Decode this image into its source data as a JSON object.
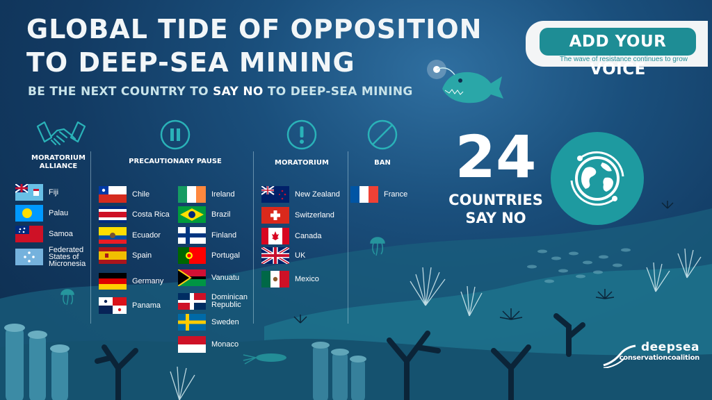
{
  "title": {
    "line1": "GLOBAL TIDE OF OPPOSITION",
    "line2": "TO DEEP-SEA MINING"
  },
  "subtitle": {
    "before": "BE THE NEXT COUNTRY TO ",
    "emphasis": "SAY NO",
    "after": " TO DEEP-SEA MINING"
  },
  "cta": {
    "button": "ADD YOUR VOICE",
    "sub": "The wave of resistance continues to grow"
  },
  "columns": {
    "alliance": {
      "heading_l1": "MORATORIUM",
      "heading_l2": "ALLIANCE",
      "icon": "handshake-icon"
    },
    "pause": {
      "heading": "PRECAUTIONARY PAUSE",
      "icon": "pause-icon"
    },
    "moratorium": {
      "heading": "MORATORIUM",
      "icon": "exclamation-icon"
    },
    "ban": {
      "heading": "BAN",
      "icon": "prohibited-icon"
    }
  },
  "countries": {
    "alliance": [
      "Fiji",
      "Palau",
      "Samoa",
      "Federated",
      "States of",
      "Micronesia"
    ],
    "pause_left": [
      "Chile",
      "Costa Rica",
      "Ecuador",
      "Spain",
      "Germany",
      "Panama"
    ],
    "pause_right": [
      "Ireland",
      "Brazil",
      "Finland",
      "Portugal",
      "Vanuatu",
      "Dominican",
      "Republic",
      "Sweden",
      "Monaco"
    ],
    "moratorium": [
      "New Zealand",
      "Switzerland",
      "Canada",
      "UK",
      "Mexico"
    ],
    "ban": [
      "France"
    ]
  },
  "counter": {
    "number": "24",
    "line1": "COUNTRIES",
    "line2": "SAY NO",
    "icon": "globe-icon"
  },
  "logo": {
    "line1": "deepsea",
    "line2": "conservationcoalition"
  },
  "colors": {
    "accent": "#1e9aa0",
    "background": "#123a62",
    "seabed": "#1d6f87"
  }
}
